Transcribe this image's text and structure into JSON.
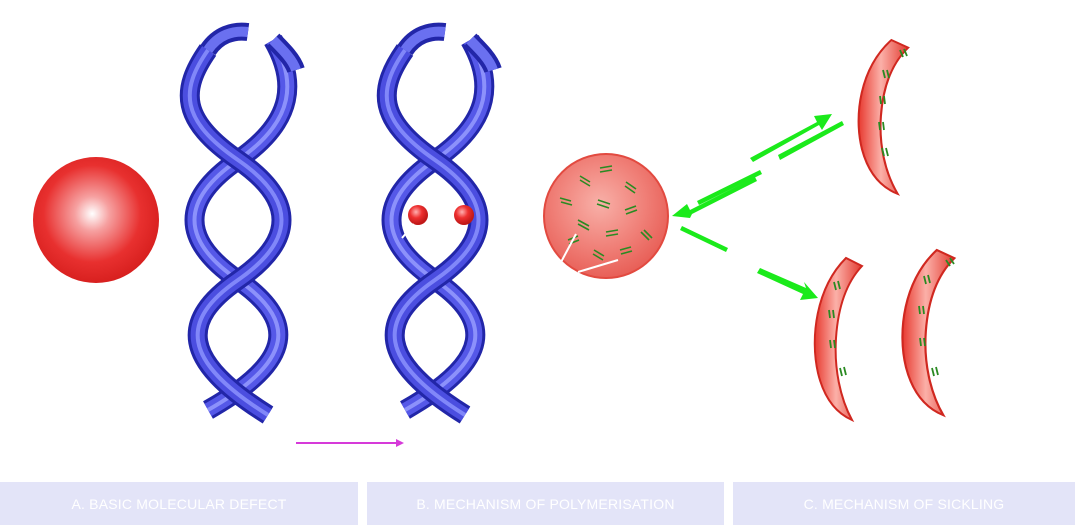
{
  "captions": {
    "a": "A. BASIC MOLECULAR DEFECT",
    "b": "B. MECHANISM OF POLYMERISATION",
    "c": "C. MECHANISM  OF SICKLING"
  },
  "colors": {
    "helix": "#4b4ee0",
    "helix_light": "#8f96ff",
    "helix_dark": "#2226a8",
    "cell_red": "#e8302f",
    "cell_light": "#ffffff",
    "polymer_green": "#2a8a22",
    "arrow_green": "#1bea1b",
    "arrow_magenta": "#d63ad9",
    "caption_bg": "#e3e4f8"
  },
  "icons": {
    "normal_cell": "red-sphere",
    "helices": "double-helix-ribbon",
    "defect_beads": "red-beads",
    "polymer_cell": "speckled-sphere",
    "sickle_cells": "crescent-cells"
  }
}
